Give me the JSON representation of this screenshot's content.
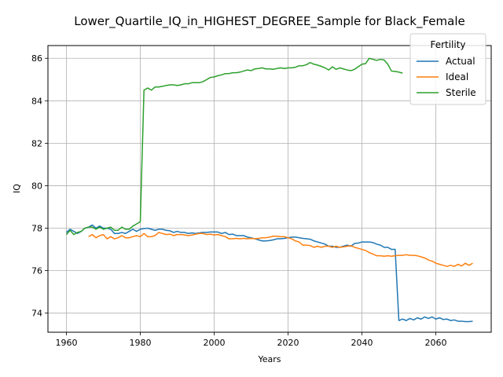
{
  "chart_data": {
    "type": "line",
    "title": "Lower_Quartile_IQ_in_HIGHEST_DEGREE_Sample for Black_Female",
    "xlabel": "Years",
    "ylabel": "IQ",
    "xlim": [
      1955,
      2075
    ],
    "ylim": [
      73.1,
      86.6
    ],
    "xticks": [
      1960,
      1980,
      2000,
      2020,
      2040,
      2060
    ],
    "yticks": [
      74,
      76,
      78,
      80,
      82,
      84,
      86
    ],
    "grid": true,
    "legend": {
      "title": "Fertility",
      "position": "top-right"
    },
    "series": [
      {
        "name": "Actual",
        "color": "#1f77b4",
        "x": [
          1960,
          1961,
          1962,
          1963,
          1964,
          1965,
          1966,
          1967,
          1968,
          1969,
          1970,
          1971,
          1972,
          1973,
          1974,
          1975,
          1976,
          1977,
          1978,
          1979,
          1980,
          1981,
          1982,
          1983,
          1984,
          1985,
          1986,
          1987,
          1988,
          1989,
          1990,
          1991,
          1992,
          1993,
          1994,
          1995,
          1996,
          1997,
          1998,
          1999,
          2000,
          2001,
          2002,
          2003,
          2004,
          2005,
          2006,
          2007,
          2008,
          2009,
          2010,
          2011,
          2012,
          2013,
          2014,
          2015,
          2016,
          2017,
          2018,
          2019,
          2020,
          2021,
          2022,
          2023,
          2024,
          2025,
          2026,
          2027,
          2028,
          2029,
          2030,
          2031,
          2032,
          2033,
          2034,
          2035,
          2036,
          2037,
          2038,
          2039,
          2040,
          2041,
          2042,
          2043,
          2044,
          2045,
          2046,
          2047,
          2048,
          2049,
          2050,
          2051,
          2052,
          2053,
          2054,
          2055,
          2056,
          2057,
          2058,
          2059,
          2060,
          2061,
          2062,
          2063,
          2064,
          2065,
          2066,
          2067,
          2068,
          2069,
          2070
        ],
        "y": [
          77.8,
          77.95,
          77.85,
          77.75,
          77.85,
          78.0,
          78.05,
          78.15,
          78.0,
          78.1,
          78.0,
          78.0,
          77.95,
          77.75,
          77.75,
          77.8,
          77.75,
          77.85,
          77.95,
          77.85,
          77.95,
          77.98,
          78.0,
          77.95,
          77.9,
          77.95,
          77.95,
          77.9,
          77.88,
          77.8,
          77.85,
          77.8,
          77.8,
          77.75,
          77.78,
          77.75,
          77.78,
          77.8,
          77.8,
          77.82,
          77.82,
          77.82,
          77.75,
          77.8,
          77.7,
          77.72,
          77.65,
          77.65,
          77.65,
          77.58,
          77.55,
          77.5,
          77.45,
          77.4,
          77.4,
          77.42,
          77.45,
          77.5,
          77.5,
          77.52,
          77.55,
          77.58,
          77.58,
          77.55,
          77.52,
          77.5,
          77.48,
          77.4,
          77.35,
          77.3,
          77.25,
          77.15,
          77.15,
          77.1,
          77.1,
          77.15,
          77.2,
          77.15,
          77.28,
          77.3,
          77.35,
          77.35,
          77.35,
          77.32,
          77.25,
          77.2,
          77.1,
          77.1,
          77.0,
          77.0,
          73.65,
          73.72,
          73.65,
          73.75,
          73.68,
          73.78,
          73.72,
          73.82,
          73.75,
          73.82,
          73.72,
          73.78,
          73.7,
          73.72,
          73.65,
          73.68,
          73.62,
          73.62,
          73.6,
          73.6,
          73.62
        ]
      },
      {
        "name": "Ideal",
        "color": "#ff7f0e",
        "x": [
          1966,
          1967,
          1968,
          1969,
          1970,
          1971,
          1972,
          1973,
          1974,
          1975,
          1976,
          1977,
          1978,
          1979,
          1980,
          1981,
          1982,
          1983,
          1984,
          1985,
          1986,
          1987,
          1988,
          1989,
          1990,
          1991,
          1992,
          1993,
          1994,
          1995,
          1996,
          1997,
          1998,
          1999,
          2000,
          2001,
          2002,
          2003,
          2004,
          2005,
          2006,
          2007,
          2008,
          2009,
          2010,
          2011,
          2012,
          2013,
          2014,
          2015,
          2016,
          2017,
          2018,
          2019,
          2020,
          2021,
          2022,
          2023,
          2024,
          2025,
          2026,
          2027,
          2028,
          2029,
          2030,
          2031,
          2032,
          2033,
          2034,
          2035,
          2036,
          2037,
          2038,
          2039,
          2040,
          2041,
          2042,
          2043,
          2044,
          2045,
          2046,
          2047,
          2048,
          2049,
          2050,
          2051,
          2052,
          2053,
          2054,
          2055,
          2056,
          2057,
          2058,
          2059,
          2060,
          2061,
          2062,
          2063,
          2064,
          2065,
          2066,
          2067,
          2068,
          2069,
          2070
        ],
        "y": [
          77.6,
          77.7,
          77.55,
          77.65,
          77.7,
          77.5,
          77.6,
          77.5,
          77.55,
          77.65,
          77.55,
          77.55,
          77.6,
          77.65,
          77.6,
          77.75,
          77.6,
          77.6,
          77.65,
          77.8,
          77.75,
          77.7,
          77.72,
          77.65,
          77.7,
          77.7,
          77.68,
          77.65,
          77.68,
          77.72,
          77.75,
          77.75,
          77.7,
          77.72,
          77.68,
          77.7,
          77.65,
          77.6,
          77.5,
          77.5,
          77.52,
          77.5,
          77.52,
          77.5,
          77.52,
          77.5,
          77.52,
          77.55,
          77.55,
          77.58,
          77.62,
          77.62,
          77.6,
          77.6,
          77.55,
          77.5,
          77.4,
          77.35,
          77.2,
          77.2,
          77.18,
          77.1,
          77.15,
          77.1,
          77.15,
          77.15,
          77.1,
          77.15,
          77.1,
          77.12,
          77.15,
          77.18,
          77.1,
          77.05,
          77.0,
          76.95,
          76.85,
          76.78,
          76.7,
          76.7,
          76.68,
          76.7,
          76.68,
          76.7,
          76.72,
          76.72,
          76.75,
          76.72,
          76.72,
          76.7,
          76.65,
          76.6,
          76.5,
          76.45,
          76.35,
          76.3,
          76.25,
          76.2,
          76.25,
          76.2,
          76.3,
          76.22,
          76.35,
          76.25,
          76.35
        ]
      },
      {
        "name": "Sterile",
        "color": "#2ca02c",
        "x": [
          1960,
          1961,
          1962,
          1963,
          1964,
          1965,
          1966,
          1967,
          1968,
          1969,
          1970,
          1971,
          1972,
          1973,
          1974,
          1975,
          1976,
          1977,
          1978,
          1979,
          1980,
          1981,
          1982,
          1983,
          1984,
          1985,
          1986,
          1987,
          1988,
          1989,
          1990,
          1991,
          1992,
          1993,
          1994,
          1995,
          1996,
          1997,
          1998,
          1999,
          2000,
          2001,
          2002,
          2003,
          2004,
          2005,
          2006,
          2007,
          2008,
          2009,
          2010,
          2011,
          2012,
          2013,
          2014,
          2015,
          2016,
          2017,
          2018,
          2019,
          2020,
          2021,
          2022,
          2023,
          2024,
          2025,
          2026,
          2027,
          2028,
          2029,
          2030,
          2031,
          2032,
          2033,
          2034,
          2035,
          2036,
          2037,
          2038,
          2039,
          2040,
          2041,
          2042,
          2043,
          2044,
          2045,
          2046,
          2047,
          2048,
          2049,
          2050,
          2051
        ],
        "y": [
          77.7,
          77.9,
          77.7,
          77.8,
          77.85,
          78.0,
          78.05,
          78.05,
          77.95,
          78.05,
          77.95,
          78.0,
          78.05,
          77.9,
          77.9,
          78.05,
          77.95,
          77.95,
          78.1,
          78.2,
          78.3,
          84.5,
          84.6,
          84.5,
          84.65,
          84.65,
          84.68,
          84.72,
          84.75,
          84.75,
          84.72,
          84.75,
          84.8,
          84.8,
          84.85,
          84.85,
          84.85,
          84.9,
          85.0,
          85.1,
          85.12,
          85.18,
          85.22,
          85.28,
          85.28,
          85.32,
          85.32,
          85.35,
          85.4,
          85.45,
          85.42,
          85.5,
          85.52,
          85.55,
          85.5,
          85.5,
          85.48,
          85.52,
          85.55,
          85.52,
          85.55,
          85.55,
          85.58,
          85.65,
          85.65,
          85.7,
          85.8,
          85.72,
          85.68,
          85.62,
          85.55,
          85.45,
          85.6,
          85.48,
          85.55,
          85.5,
          85.45,
          85.42,
          85.48,
          85.6,
          85.72,
          85.75,
          86.0,
          85.95,
          85.9,
          85.95,
          85.92,
          85.72,
          85.4,
          85.38,
          85.35,
          85.3
        ]
      }
    ]
  }
}
